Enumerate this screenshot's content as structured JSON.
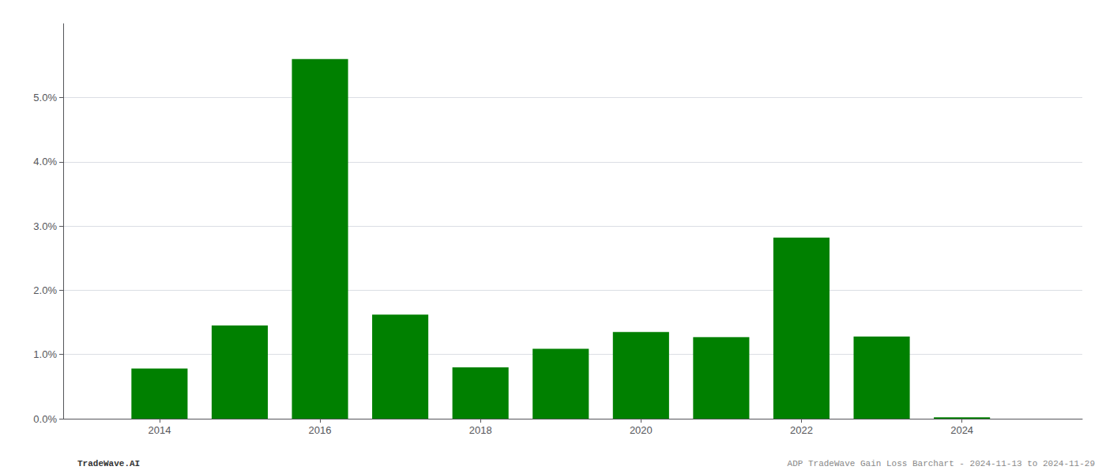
{
  "chart_data": {
    "type": "bar",
    "x": [
      2014,
      2015,
      2016,
      2017,
      2018,
      2019,
      2020,
      2021,
      2022,
      2023,
      2024
    ],
    "values": [
      0.0078,
      0.0145,
      0.056,
      0.0162,
      0.008,
      0.0109,
      0.0135,
      0.0127,
      0.0282,
      0.0128,
      0.0002
    ],
    "color": "#008000",
    "xlim": [
      2012.8,
      2025.5
    ],
    "xticks": [
      2014,
      2016,
      2018,
      2020,
      2022,
      2024
    ],
    "ylim": [
      0,
      0.0615
    ],
    "yticks": [
      {
        "value": 0.0,
        "label": "0.0%"
      },
      {
        "value": 0.01,
        "label": "1.0%"
      },
      {
        "value": 0.02,
        "label": "2.0%"
      },
      {
        "value": 0.03,
        "label": "3.0%"
      },
      {
        "value": 0.04,
        "label": "4.0%"
      },
      {
        "value": 0.05,
        "label": "5.0%"
      }
    ],
    "grid": true,
    "annotations": [
      "TradeWave.AI",
      "ADP TradeWave Gain Loss Barchart - 2024-11-13 to 2024-11-29"
    ]
  }
}
